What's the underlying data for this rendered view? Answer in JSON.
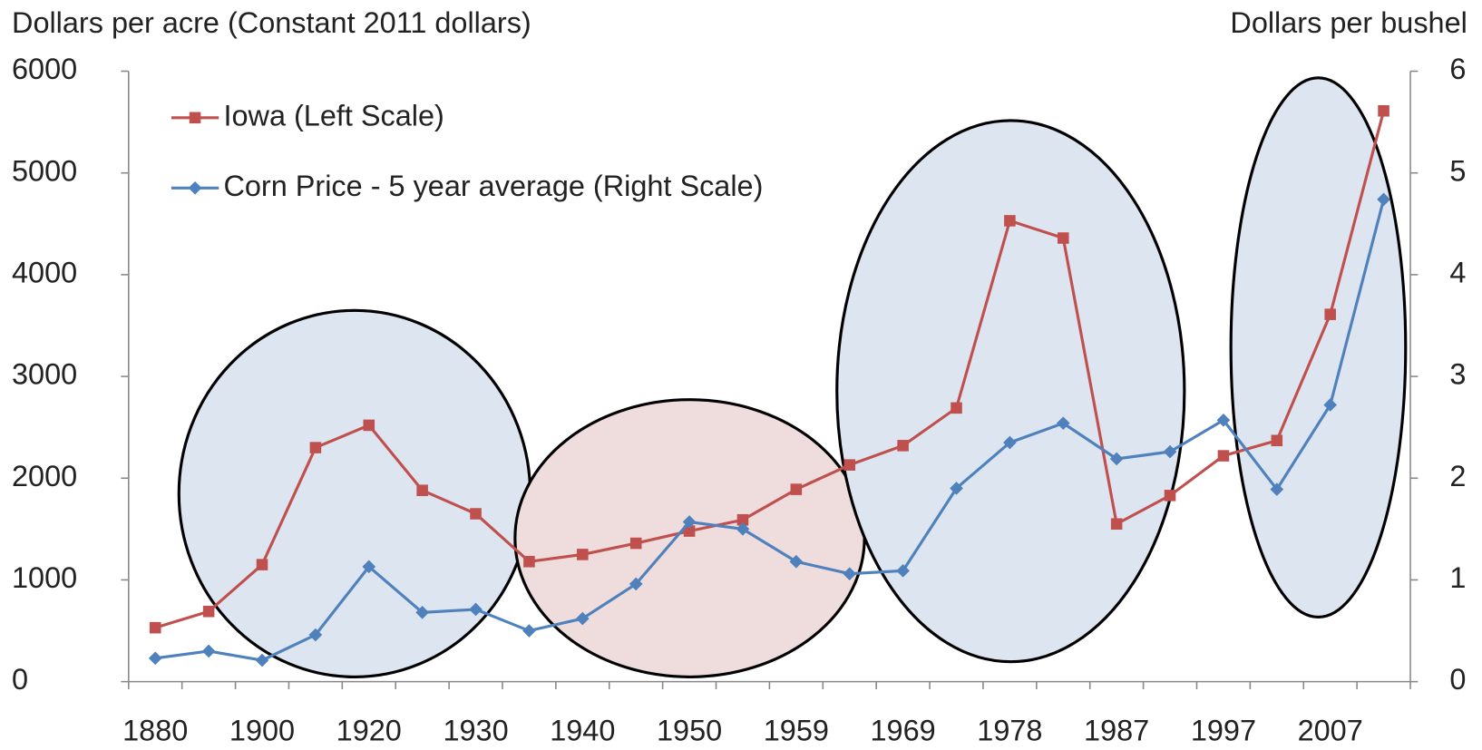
{
  "chart_data": {
    "type": "line",
    "y_label": "Dollars per acre (Constant 2011 dollars)",
    "y2_label": "Dollars per bushel",
    "categories": [
      "1880",
      null,
      "1900",
      null,
      "1920",
      null,
      "1930",
      null,
      "1940",
      null,
      "1950",
      null,
      "1959",
      null,
      "1969",
      null,
      "1978",
      null,
      "1987",
      null,
      "1997",
      null,
      "2007",
      null
    ],
    "series": [
      {
        "name": "Iowa (Left Scale)",
        "color": "#c0504d",
        "marker": "square",
        "values": [
          530,
          690,
          1150,
          2300,
          2520,
          1880,
          1650,
          1180,
          1250,
          1360,
          1480,
          1590,
          1890,
          2130,
          2320,
          2690,
          4530,
          4360,
          1550,
          1830,
          2220,
          2370,
          3610,
          5610
        ]
      },
      {
        "name": "Corn Price - 5 year average (Right Scale)",
        "color": "#4f81bd",
        "marker": "diamond",
        "axis": "y2",
        "values": [
          0.23,
          0.3,
          0.21,
          0.46,
          1.13,
          0.68,
          0.71,
          0.5,
          0.62,
          0.96,
          1.57,
          1.5,
          1.18,
          1.06,
          1.09,
          1.9,
          2.35,
          2.54,
          2.19,
          2.26,
          2.57,
          1.89,
          2.72,
          4.74
        ]
      }
    ],
    "ylim": [
      0,
      6000
    ],
    "yticks": [
      0,
      1000,
      2000,
      3000,
      4000,
      5000,
      6000
    ],
    "y2lim": [
      0,
      6
    ],
    "y2ticks": [
      0,
      1,
      2,
      3,
      4,
      5,
      6
    ],
    "legend": "upper left"
  }
}
